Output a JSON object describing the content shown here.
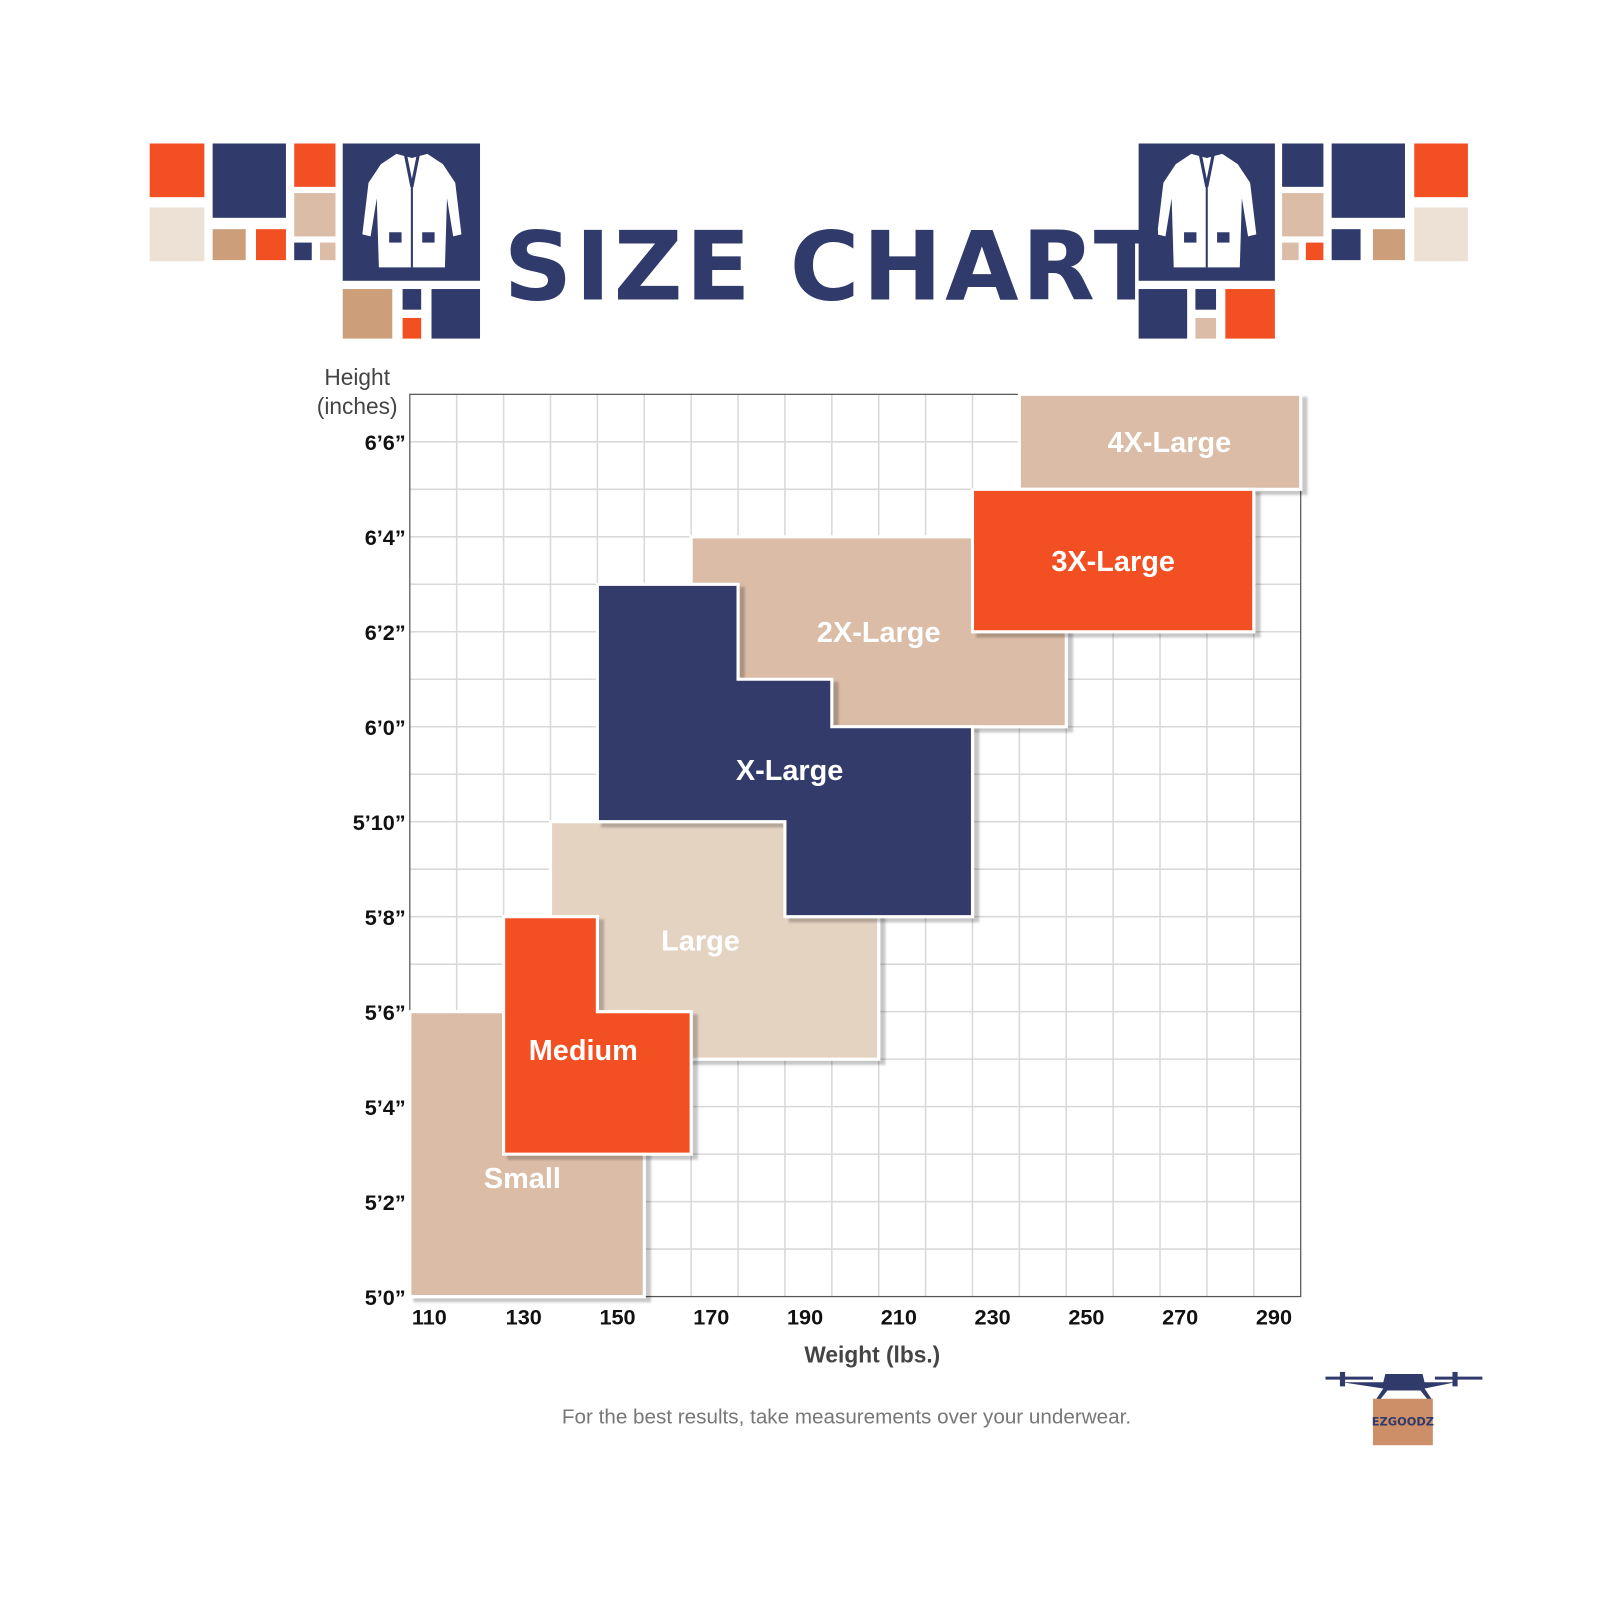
{
  "header": {
    "title": "SIZE CHART"
  },
  "footer": {
    "note": "For the best results, take measurements over your underwear.",
    "logo_text": "EZGOODZ"
  },
  "colors": {
    "navy": "#303a6b",
    "orange": "#f25022",
    "tan": "#dbbca6",
    "light_tan": "#e5d3c2",
    "grid": "#d9d9d9"
  },
  "chart_data": {
    "type": "area",
    "title": "SIZE CHART",
    "xlabel": "Weight (lbs.)",
    "ylabel": "Height (inches)",
    "xlim": [
      110,
      300
    ],
    "ylim": [
      60,
      79
    ],
    "grid": true,
    "x_ticks": [
      110,
      130,
      150,
      170,
      190,
      210,
      230,
      250,
      270,
      290
    ],
    "y_ticks": [
      {
        "value": 60,
        "label": "5’0”"
      },
      {
        "value": 62,
        "label": "5’2”"
      },
      {
        "value": 64,
        "label": "5’4”"
      },
      {
        "value": 66,
        "label": "5’6”"
      },
      {
        "value": 68,
        "label": "5’8”"
      },
      {
        "value": 70,
        "label": "5’10”"
      },
      {
        "value": 72,
        "label": "6’0”"
      },
      {
        "value": 74,
        "label": "6’2”"
      },
      {
        "value": 76,
        "label": "6’4”"
      },
      {
        "value": 78,
        "label": "6’6”"
      }
    ],
    "regions": [
      {
        "name": "Large",
        "color": "#e5d3c2",
        "label_at": [
          172,
          67.5
        ],
        "points": [
          [
            140,
            65
          ],
          [
            210,
            65
          ],
          [
            210,
            70
          ],
          [
            140,
            70
          ]
        ]
      },
      {
        "name": "Small",
        "color": "#dbbca6",
        "label_at": [
          134,
          62.5
        ],
        "points": [
          [
            110,
            60
          ],
          [
            160,
            60
          ],
          [
            160,
            66
          ],
          [
            110,
            66
          ]
        ]
      },
      {
        "name": "Medium",
        "color": "#f25022",
        "label_at": [
          147,
          65.2
        ],
        "points": [
          [
            130,
            63
          ],
          [
            170,
            63
          ],
          [
            170,
            66
          ],
          [
            150,
            66
          ],
          [
            150,
            68
          ],
          [
            130,
            68
          ]
        ]
      },
      {
        "name": "2X-Large",
        "color": "#dbbca6",
        "label_at": [
          210,
          74
        ],
        "points": [
          [
            170,
            72
          ],
          [
            250,
            72
          ],
          [
            250,
            76
          ],
          [
            170,
            76
          ]
        ]
      },
      {
        "name": "X-Large",
        "color": "#303a6b",
        "label_at": [
          191,
          71.1
        ],
        "points": [
          [
            150,
            70
          ],
          [
            190,
            70
          ],
          [
            190,
            68
          ],
          [
            230,
            68
          ],
          [
            230,
            72
          ],
          [
            200,
            72
          ],
          [
            200,
            73
          ],
          [
            180,
            73
          ],
          [
            180,
            75
          ],
          [
            150,
            75
          ]
        ]
      },
      {
        "name": "4X-Large",
        "color": "#dbbca6",
        "label_at": [
          272,
          78
        ],
        "points": [
          [
            240,
            77
          ],
          [
            300,
            77
          ],
          [
            300,
            79
          ],
          [
            240,
            79
          ]
        ]
      },
      {
        "name": "3X-Large",
        "color": "#f25022",
        "label_at": [
          260,
          75.5
        ],
        "points": [
          [
            230,
            74
          ],
          [
            290,
            74
          ],
          [
            290,
            77
          ],
          [
            230,
            77
          ]
        ]
      }
    ]
  }
}
